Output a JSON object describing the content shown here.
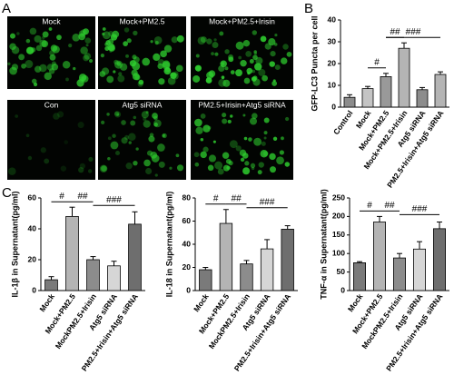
{
  "panel_a": {
    "label": "A",
    "images": [
      "Mock",
      "Mock+PM2.5",
      "Mock+PM2.5+Irisin",
      "Con",
      "Atg5 siRNA",
      "PM2.5+Irisin+Atg5 siRNA"
    ]
  },
  "chart_data": [
    {
      "type": "bar",
      "panel": "B",
      "y_label": "GFP-LC3 Puncta per cell",
      "categories": [
        "Control",
        "Mock",
        "Mock+PM2.5",
        "Mock+PM2.5+Irisin",
        "Atg5 siRNA",
        "PM2.5+Irisin+Atg5 siRNA"
      ],
      "values": [
        4.5,
        8.5,
        14,
        27,
        8,
        15
      ],
      "errors": [
        1.2,
        1,
        1.5,
        2.5,
        1,
        1.2
      ],
      "colors": [
        "#8c8c8c",
        "#c4c4c4",
        "#999999",
        "#b4b4b4",
        "#8c8c8c",
        "#b4b4b4"
      ],
      "ylim": [
        0,
        40
      ],
      "yticks": [
        0,
        10,
        20,
        30,
        40
      ],
      "annotations": [
        "#",
        "##",
        "###"
      ]
    },
    {
      "type": "bar",
      "panel": "C",
      "y_label": "IL-1β in Supernatant(pg/ml)",
      "categories": [
        "Mock",
        "Mock+PM2.5",
        "MockPM2.5+Irisin",
        "Atg5 siRNA",
        "PM2.5+Irisin+Atg5 siRNA"
      ],
      "values": [
        7,
        48,
        20,
        16,
        43
      ],
      "errors": [
        2,
        6,
        2,
        3,
        8
      ],
      "colors": [
        "#7a7a7a",
        "#b4b4b4",
        "#8c8c8c",
        "#d6d6d6",
        "#6e6e6e"
      ],
      "ylim": [
        0,
        60
      ],
      "yticks": [
        0,
        20,
        40,
        60
      ],
      "annotations": [
        "#",
        "##",
        "###"
      ]
    },
    {
      "type": "bar",
      "y_label": "IL-18 in Supernatant(pg/ml)",
      "categories": [
        "Mock",
        "Mock+PM2.5",
        "MockPM2.5+Irisin",
        "Atg5 siRNA",
        "PM2.5+Irisin+Atg5 siRNA"
      ],
      "values": [
        18,
        58,
        23,
        36,
        53
      ],
      "errors": [
        2,
        12,
        3,
        8,
        3
      ],
      "colors": [
        "#7a7a7a",
        "#b4b4b4",
        "#8c8c8c",
        "#d6d6d6",
        "#6e6e6e"
      ],
      "ylim": [
        0,
        80
      ],
      "yticks": [
        0,
        20,
        40,
        60,
        80
      ],
      "annotations": [
        "#",
        "##",
        "###"
      ]
    },
    {
      "type": "bar",
      "y_label": "TNF-α in Supernatant(pg/ml)",
      "categories": [
        "Mock",
        "Mock+PM2.5",
        "MockPM2.5+Irisin",
        "Atg5 siRNA",
        "PM2.5+Irisin+Atg5 siRNA"
      ],
      "values": [
        75,
        185,
        88,
        112,
        167
      ],
      "errors": [
        3,
        15,
        12,
        20,
        18
      ],
      "colors": [
        "#7a7a7a",
        "#b4b4b4",
        "#8c8c8c",
        "#d6d6d6",
        "#6e6e6e"
      ],
      "ylim": [
        0,
        250
      ],
      "yticks": [
        0,
        50,
        100,
        150,
        200,
        250
      ],
      "annotations": [
        "#",
        "##",
        "###"
      ]
    }
  ]
}
